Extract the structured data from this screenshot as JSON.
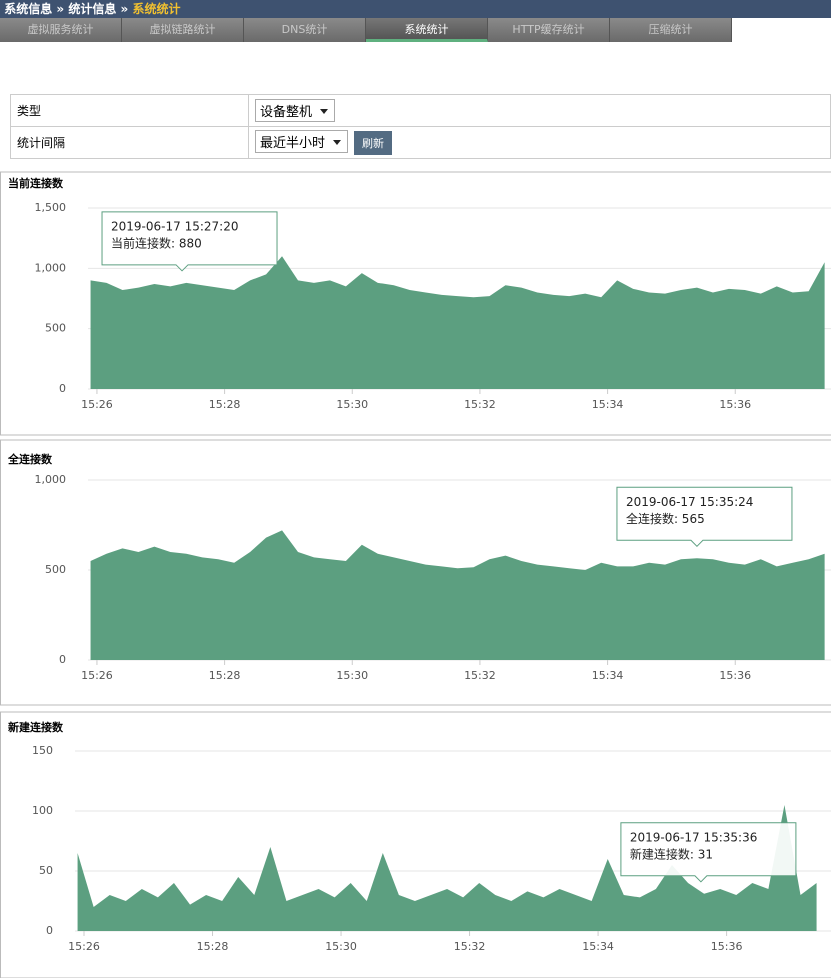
{
  "breadcrumb": [
    "系统信息",
    "统计信息",
    "系统统计"
  ],
  "tabs": [
    "虚拟服务统计",
    "虚拟链路统计",
    "DNS统计",
    "系统统计",
    "HTTP缓存统计",
    "压缩统计"
  ],
  "active_tab": 3,
  "form": {
    "rows": [
      {
        "label": "类型",
        "select": "设备整机"
      },
      {
        "label": "统计间隔",
        "select": "最近半小时",
        "button": "刷新"
      }
    ]
  },
  "chart_data": [
    {
      "type": "area",
      "title": "当前连接数",
      "color": "#5c9f80",
      "grid": true,
      "x": [
        925.9,
        926.15,
        926.4,
        926.65,
        926.9,
        927.15,
        927.4,
        927.65,
        927.9,
        928.15,
        928.4,
        928.65,
        928.9,
        929.15,
        929.4,
        929.65,
        929.9,
        930.15,
        930.4,
        930.65,
        930.9,
        931.15,
        931.4,
        931.65,
        931.9,
        932.15,
        932.4,
        932.65,
        932.9,
        933.15,
        933.4,
        933.65,
        933.9,
        934.15,
        934.4,
        934.65,
        934.9,
        935.15,
        935.4,
        935.65,
        935.9,
        936.15,
        936.4,
        936.65,
        936.9,
        937.15,
        937.4
      ],
      "values": [
        900,
        880,
        820,
        840,
        870,
        850,
        880,
        860,
        840,
        820,
        900,
        950,
        1100,
        900,
        880,
        900,
        850,
        960,
        880,
        860,
        820,
        800,
        780,
        770,
        760,
        770,
        860,
        840,
        800,
        780,
        770,
        790,
        760,
        900,
        830,
        800,
        790,
        820,
        840,
        800,
        830,
        820,
        790,
        850,
        800,
        810,
        1050
      ],
      "xlim": [
        925.86,
        937.5
      ],
      "ylim": [
        0,
        1500
      ],
      "xticks": [
        {
          "value": 926,
          "label": "15:26"
        },
        {
          "value": 928,
          "label": "15:28"
        },
        {
          "value": 930,
          "label": "15:30"
        },
        {
          "value": 932,
          "label": "15:32"
        },
        {
          "value": 934,
          "label": "15:34"
        },
        {
          "value": 936,
          "label": "15:36"
        }
      ],
      "yticks": [
        0,
        500,
        {
          "value": 1000,
          "label": "1,000"
        },
        {
          "value": 1500,
          "label": "1,500"
        }
      ],
      "tooltip": {
        "x": 927.333,
        "y": 880,
        "lines": [
          "2019-06-17 15:27:20",
          "当前连接数: 880"
        ]
      }
    },
    {
      "type": "area",
      "title": "全连接数",
      "color": "#5c9f80",
      "grid": true,
      "x": [
        925.9,
        926.15,
        926.4,
        926.65,
        926.9,
        927.15,
        927.4,
        927.65,
        927.9,
        928.15,
        928.4,
        928.65,
        928.9,
        929.15,
        929.4,
        929.65,
        929.9,
        930.15,
        930.4,
        930.65,
        930.9,
        931.15,
        931.4,
        931.65,
        931.9,
        932.15,
        932.4,
        932.65,
        932.9,
        933.15,
        933.4,
        933.65,
        933.9,
        934.15,
        934.4,
        934.65,
        934.9,
        935.15,
        935.4,
        935.65,
        935.9,
        936.15,
        936.4,
        936.65,
        936.9,
        937.15,
        937.4
      ],
      "values": [
        550,
        590,
        620,
        600,
        630,
        600,
        590,
        570,
        560,
        540,
        600,
        680,
        720,
        600,
        570,
        560,
        550,
        640,
        590,
        570,
        550,
        530,
        520,
        510,
        515,
        560,
        580,
        550,
        530,
        520,
        510,
        500,
        540,
        520,
        520,
        540,
        530,
        560,
        565,
        560,
        540,
        530,
        560,
        520,
        540,
        560,
        590
      ],
      "xlim": [
        925.86,
        937.5
      ],
      "ylim": [
        0,
        1000
      ],
      "xticks": [
        {
          "value": 926,
          "label": "15:26"
        },
        {
          "value": 928,
          "label": "15:28"
        },
        {
          "value": 930,
          "label": "15:30"
        },
        {
          "value": 932,
          "label": "15:32"
        },
        {
          "value": 934,
          "label": "15:34"
        },
        {
          "value": 936,
          "label": "15:36"
        }
      ],
      "yticks": [
        0,
        500,
        {
          "value": 1000,
          "label": "1,000"
        }
      ],
      "tooltip": {
        "x": 935.4,
        "y": 565,
        "lines": [
          "2019-06-17 15:35:24",
          "全连接数: 565"
        ]
      }
    },
    {
      "type": "area",
      "title": "新建连接数",
      "color": "#5c9f80",
      "grid": true,
      "x": [
        925.9,
        926.15,
        926.4,
        926.65,
        926.9,
        927.15,
        927.4,
        927.65,
        927.9,
        928.15,
        928.4,
        928.65,
        928.9,
        929.15,
        929.4,
        929.65,
        929.9,
        930.15,
        930.4,
        930.65,
        930.9,
        931.15,
        931.4,
        931.65,
        931.9,
        932.15,
        932.4,
        932.65,
        932.9,
        933.15,
        933.4,
        933.65,
        933.9,
        934.15,
        934.4,
        934.65,
        934.9,
        935.15,
        935.4,
        935.65,
        935.9,
        936.15,
        936.4,
        936.65,
        936.9,
        937.15,
        937.4
      ],
      "values": [
        65,
        20,
        30,
        25,
        35,
        28,
        40,
        22,
        30,
        25,
        45,
        30,
        70,
        25,
        30,
        35,
        28,
        40,
        25,
        65,
        30,
        25,
        30,
        35,
        28,
        40,
        30,
        25,
        33,
        28,
        35,
        30,
        25,
        60,
        30,
        28,
        35,
        55,
        40,
        31,
        35,
        30,
        40,
        35,
        105,
        30,
        40
      ],
      "xlim": [
        925.86,
        937.5
      ],
      "ylim": [
        0,
        150
      ],
      "xticks": [
        {
          "value": 926,
          "label": "15:26"
        },
        {
          "value": 928,
          "label": "15:28"
        },
        {
          "value": 930,
          "label": "15:30"
        },
        {
          "value": 932,
          "label": "15:32"
        },
        {
          "value": 934,
          "label": "15:34"
        },
        {
          "value": 936,
          "label": "15:36"
        }
      ],
      "yticks": [
        0,
        50,
        100,
        150
      ],
      "tooltip": {
        "x": 935.6,
        "y": 31,
        "lines": [
          "2019-06-17 15:35:36",
          "新建连接数: 31"
        ]
      }
    }
  ]
}
